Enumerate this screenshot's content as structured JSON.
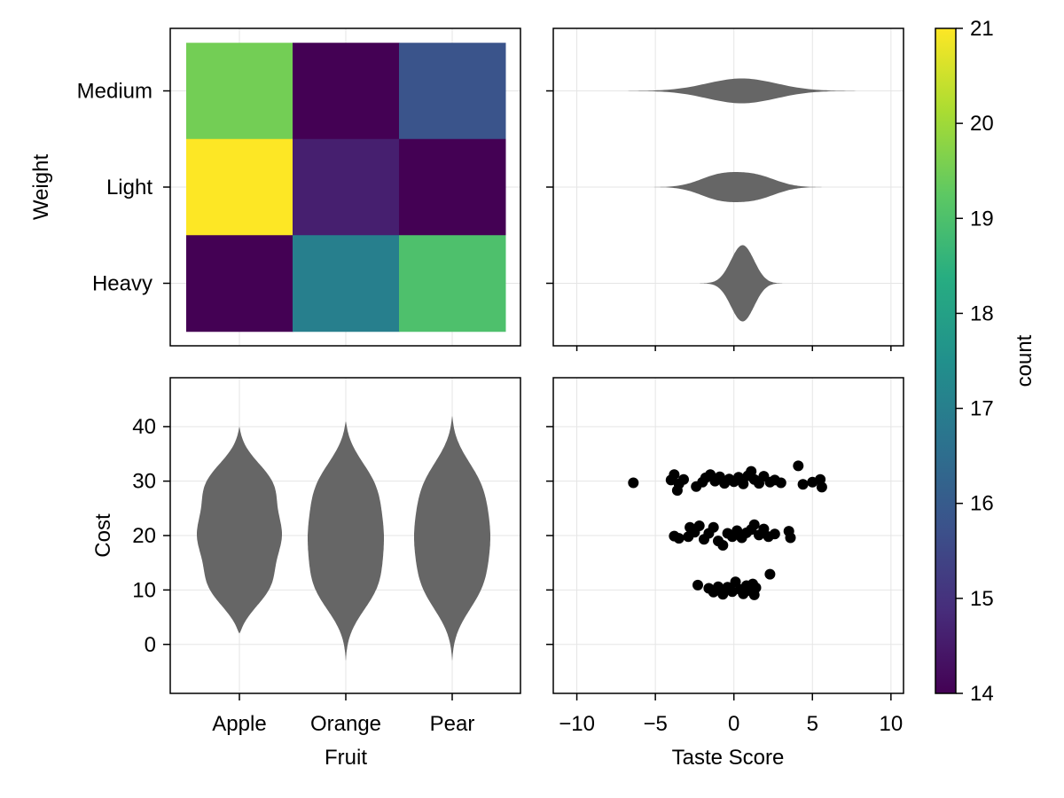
{
  "chart_data": [
    {
      "panel": "heatmap",
      "type": "heatmap",
      "x_categories": [
        "Apple",
        "Orange",
        "Pear"
      ],
      "y_categories": [
        "Heavy",
        "Light",
        "Medium"
      ],
      "ylabel": "Weight",
      "values": [
        {
          "x": "Apple",
          "y": "Medium",
          "value": 19.5
        },
        {
          "x": "Orange",
          "y": "Medium",
          "value": 14.0
        },
        {
          "x": "Pear",
          "y": "Medium",
          "value": 15.8
        },
        {
          "x": "Apple",
          "y": "Light",
          "value": 21.0
        },
        {
          "x": "Orange",
          "y": "Light",
          "value": 14.6
        },
        {
          "x": "Pear",
          "y": "Light",
          "value": 14.0
        },
        {
          "x": "Apple",
          "y": "Heavy",
          "value": 14.0
        },
        {
          "x": "Orange",
          "y": "Heavy",
          "value": 17.0
        },
        {
          "x": "Pear",
          "y": "Heavy",
          "value": 19.0
        }
      ],
      "grid": true
    },
    {
      "panel": "taste-violins",
      "type": "violin",
      "orientation": "horizontal",
      "categories": [
        "Heavy",
        "Light",
        "Medium"
      ],
      "xlim": [
        -11.5,
        10.8
      ],
      "xticks": [
        -10,
        -5,
        0,
        5,
        10
      ],
      "series": [
        {
          "category": "Medium",
          "min": -9,
          "max": 10,
          "peaks": [
            [
              0.5,
              1.0
            ]
          ],
          "peak_halfwidth": 14
        },
        {
          "category": "Light",
          "min": -5.5,
          "max": 6,
          "peaks": [
            [
              -1.0,
              0.85
            ],
            [
              1.5,
              0.8
            ]
          ],
          "peak_halfwidth": 17
        },
        {
          "category": "Heavy",
          "min": -3.2,
          "max": 3.2,
          "peaks": [
            [
              0.6,
              1.0
            ]
          ],
          "peak_halfwidth": 43
        }
      ],
      "color": "#666666",
      "grid": true
    },
    {
      "panel": "cost-violins",
      "type": "violin",
      "orientation": "vertical",
      "categories": [
        "Apple",
        "Orange",
        "Pear"
      ],
      "xlabel": "Fruit",
      "ylabel": "Cost",
      "ylim": [
        -9,
        49
      ],
      "yticks": [
        0,
        10,
        20,
        30,
        40
      ],
      "series": [
        {
          "category": "Apple",
          "min": 2,
          "max": 40,
          "peaks": [
            [
              10,
              1.0
            ],
            [
              20,
              1.0
            ],
            [
              30,
              1.0
            ]
          ],
          "peak_halfwidth": 48
        },
        {
          "category": "Orange",
          "min": -3,
          "max": 41,
          "peaks": [
            [
              10,
              1.0
            ],
            [
              20,
              0.95
            ],
            [
              30,
              1.0
            ]
          ],
          "peak_halfwidth": 43
        },
        {
          "category": "Pear",
          "min": -3,
          "max": 42,
          "peaks": [
            [
              10,
              1.0
            ],
            [
              20,
              1.0
            ],
            [
              30,
              1.0
            ]
          ],
          "peak_halfwidth": 43
        }
      ],
      "color": "#666666",
      "grid": true
    },
    {
      "panel": "scatter",
      "type": "scatter",
      "xlabel": "Taste Score",
      "xlim": [
        -11.5,
        10.8
      ],
      "ylim": [
        -9,
        49
      ],
      "xticks": [
        -10,
        -5,
        0,
        5,
        10
      ],
      "yticks": [
        0,
        10,
        20,
        30,
        40
      ],
      "color": "#000000",
      "points": [
        [
          -6.4,
          29.7
        ],
        [
          -4.0,
          30.2
        ],
        [
          -3.8,
          31.2
        ],
        [
          -3.5,
          29.5
        ],
        [
          -3.6,
          28.3
        ],
        [
          -3.2,
          30.3
        ],
        [
          -2.4,
          29.0
        ],
        [
          -2.0,
          29.8
        ],
        [
          -1.8,
          30.6
        ],
        [
          -1.5,
          31.2
        ],
        [
          -1.2,
          30.0
        ],
        [
          -0.9,
          30.8
        ],
        [
          -0.6,
          29.6
        ],
        [
          -0.3,
          30.4
        ],
        [
          0.0,
          29.9
        ],
        [
          0.3,
          30.7
        ],
        [
          0.6,
          29.5
        ],
        [
          0.9,
          31.0
        ],
        [
          1.1,
          31.8
        ],
        [
          1.3,
          30.3
        ],
        [
          1.6,
          29.6
        ],
        [
          1.9,
          30.9
        ],
        [
          2.3,
          29.8
        ],
        [
          2.6,
          30.2
        ],
        [
          3.0,
          29.7
        ],
        [
          4.1,
          32.8
        ],
        [
          4.4,
          29.4
        ],
        [
          5.0,
          29.8
        ],
        [
          5.5,
          30.3
        ],
        [
          5.6,
          28.9
        ],
        [
          -3.8,
          19.9
        ],
        [
          -3.5,
          19.5
        ],
        [
          -2.9,
          19.8
        ],
        [
          -2.8,
          21.5
        ],
        [
          -2.5,
          20.6
        ],
        [
          -2.2,
          21.8
        ],
        [
          -1.9,
          19.3
        ],
        [
          -1.6,
          20.4
        ],
        [
          -1.3,
          21.5
        ],
        [
          -1.0,
          19.0
        ],
        [
          -0.7,
          18.2
        ],
        [
          -0.4,
          20.4
        ],
        [
          -0.1,
          19.8
        ],
        [
          0.2,
          20.9
        ],
        [
          0.5,
          19.6
        ],
        [
          0.8,
          20.5
        ],
        [
          1.1,
          21.1
        ],
        [
          1.3,
          22.0
        ],
        [
          1.6,
          20.1
        ],
        [
          1.9,
          21.2
        ],
        [
          2.2,
          19.8
        ],
        [
          2.6,
          20.3
        ],
        [
          3.5,
          20.8
        ],
        [
          3.6,
          19.6
        ],
        [
          -2.3,
          10.9
        ],
        [
          -1.6,
          10.3
        ],
        [
          -1.3,
          9.6
        ],
        [
          -1.0,
          10.6
        ],
        [
          -0.7,
          9.2
        ],
        [
          -0.4,
          10.5
        ],
        [
          -0.1,
          9.7
        ],
        [
          0.1,
          11.5
        ],
        [
          0.4,
          10.1
        ],
        [
          0.6,
          9.3
        ],
        [
          0.8,
          10.8
        ],
        [
          1.0,
          9.9
        ],
        [
          1.2,
          11.1
        ],
        [
          1.4,
          10.4
        ],
        [
          1.3,
          9.1
        ],
        [
          2.3,
          12.9
        ]
      ],
      "grid": true
    },
    {
      "panel": "colorbar",
      "type": "colorbar",
      "label": "count",
      "range": [
        14,
        21
      ],
      "ticks": [
        14,
        15,
        16,
        17,
        18,
        19,
        20,
        21
      ],
      "colormap": "viridis"
    }
  ],
  "colors": {
    "viridis": [
      "#440154",
      "#472d7b",
      "#3b528b",
      "#2c728e",
      "#21908c",
      "#27ad81",
      "#5dc863",
      "#aadc32",
      "#fde725"
    ],
    "violin_fill": "#666666",
    "grid": "#e5e5e5",
    "frame": "#000000"
  }
}
